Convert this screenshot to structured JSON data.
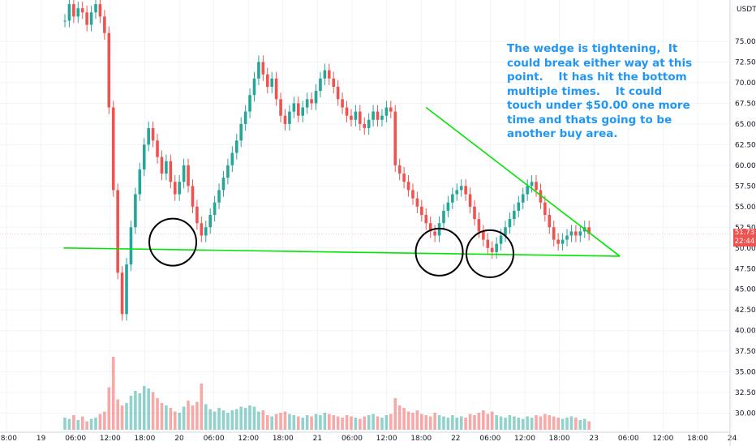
{
  "chart_data": {
    "type": "candlestick",
    "currency": "USDT",
    "ylim": [
      28.0,
      80.0
    ],
    "y_ticks": [
      "75.00",
      "72.50",
      "70.00",
      "67.50",
      "65.00",
      "62.50",
      "60.00",
      "57.50",
      "55.00",
      "52.50",
      "50.00",
      "47.50",
      "45.00",
      "42.50",
      "40.00",
      "37.50",
      "35.00",
      "32.50",
      "30.00"
    ],
    "x_ticks": [
      "18:00",
      "19",
      "06:00",
      "12:00",
      "18:00",
      "20",
      "06:00",
      "12:00",
      "18:00",
      "21",
      "06:00",
      "12:00",
      "18:00",
      "22",
      "06:00",
      "12:00",
      "18:00",
      "23",
      "06:00",
      "12:00",
      "18:00",
      "24"
    ],
    "last_price": "51.73",
    "countdown": "22:44",
    "annotation": "The wedge is tightening,  It could break either way at this point.    It has hit the bottom multiple times.    It could touch under $50.00 one more time and thats going to be another buy area.",
    "price_series": [
      [
        77.5,
        77.5
      ],
      [
        77.5,
        79.5
      ],
      [
        79.5,
        78.0
      ],
      [
        78.0,
        79.0
      ],
      [
        79.0,
        78.5
      ],
      [
        78.5,
        77.0
      ],
      [
        77.0,
        78.5
      ],
      [
        78.5,
        79.5
      ],
      [
        79.5,
        78.0
      ],
      [
        78.0,
        76.0
      ],
      [
        76.0,
        67.0
      ],
      [
        67.0,
        57.0
      ],
      [
        57.0,
        47.0
      ],
      [
        47.0,
        42.0
      ],
      [
        42.0,
        48.0
      ],
      [
        48.0,
        52.5
      ],
      [
        52.5,
        56.5
      ],
      [
        56.5,
        59.5
      ],
      [
        59.5,
        62.5
      ],
      [
        62.5,
        64.5
      ],
      [
        64.5,
        63.0
      ],
      [
        63.0,
        61.0
      ],
      [
        61.0,
        59.0
      ],
      [
        59.0,
        60.5
      ],
      [
        60.5,
        58.0
      ],
      [
        58.0,
        56.5
      ],
      [
        56.5,
        58.0
      ],
      [
        58.0,
        60.0
      ],
      [
        60.0,
        57.5
      ],
      [
        57.5,
        55.0
      ],
      [
        55.0,
        53.0
      ],
      [
        53.0,
        51.5
      ],
      [
        51.5,
        52.5
      ],
      [
        52.5,
        54.0
      ],
      [
        54.0,
        55.5
      ],
      [
        55.5,
        57.0
      ],
      [
        57.0,
        58.5
      ],
      [
        58.5,
        60.0
      ],
      [
        60.0,
        61.5
      ],
      [
        61.5,
        63.0
      ],
      [
        63.0,
        65.0
      ],
      [
        65.0,
        66.5
      ],
      [
        66.5,
        68.5
      ],
      [
        68.5,
        70.5
      ],
      [
        70.5,
        72.5
      ],
      [
        72.5,
        71.0
      ],
      [
        71.0,
        69.5
      ],
      [
        69.5,
        70.5
      ],
      [
        70.5,
        68.0
      ],
      [
        68.0,
        66.0
      ],
      [
        66.0,
        65.0
      ],
      [
        65.0,
        66.5
      ],
      [
        66.5,
        67.5
      ],
      [
        67.5,
        66.0
      ],
      [
        66.0,
        67.0
      ],
      [
        67.0,
        68.0
      ],
      [
        68.0,
        67.5
      ],
      [
        67.5,
        69.0
      ],
      [
        69.0,
        70.5
      ],
      [
        70.5,
        71.5
      ],
      [
        71.5,
        70.5
      ],
      [
        70.5,
        69.5
      ],
      [
        69.5,
        68.0
      ],
      [
        68.0,
        67.0
      ],
      [
        67.0,
        66.0
      ],
      [
        66.0,
        65.5
      ],
      [
        65.5,
        66.5
      ],
      [
        66.5,
        65.0
      ],
      [
        65.0,
        64.5
      ],
      [
        64.5,
        65.5
      ],
      [
        65.5,
        66.5
      ],
      [
        66.5,
        65.5
      ],
      [
        65.5,
        66.0
      ],
      [
        66.0,
        67.0
      ],
      [
        67.0,
        66.5
      ],
      [
        66.5,
        60.0
      ],
      [
        60.0,
        59.0
      ],
      [
        59.0,
        58.0
      ],
      [
        58.0,
        57.0
      ],
      [
        57.0,
        56.0
      ],
      [
        56.0,
        55.0
      ],
      [
        55.0,
        54.0
      ],
      [
        54.0,
        53.0
      ],
      [
        53.0,
        52.0
      ],
      [
        52.0,
        51.5
      ],
      [
        51.5,
        53.0
      ],
      [
        53.0,
        54.5
      ],
      [
        54.5,
        55.5
      ],
      [
        55.5,
        56.5
      ],
      [
        56.5,
        57.0
      ],
      [
        57.0,
        57.5
      ],
      [
        57.5,
        56.5
      ],
      [
        56.5,
        55.0
      ],
      [
        55.0,
        53.5
      ],
      [
        53.5,
        52.0
      ],
      [
        52.0,
        51.0
      ],
      [
        51.0,
        50.0
      ],
      [
        50.0,
        49.5
      ],
      [
        49.5,
        50.5
      ],
      [
        50.5,
        51.5
      ],
      [
        51.5,
        52.5
      ],
      [
        52.5,
        53.5
      ],
      [
        53.5,
        54.5
      ],
      [
        54.5,
        55.5
      ],
      [
        55.5,
        56.5
      ],
      [
        56.5,
        57.5
      ],
      [
        57.5,
        58.0
      ],
      [
        58.0,
        57.0
      ],
      [
        57.0,
        55.5
      ],
      [
        55.5,
        54.0
      ],
      [
        54.0,
        52.5
      ],
      [
        52.5,
        51.0
      ],
      [
        51.0,
        50.5
      ],
      [
        50.5,
        51.0
      ],
      [
        51.0,
        51.5
      ],
      [
        51.5,
        52.0
      ],
      [
        52.0,
        51.5
      ],
      [
        51.5,
        52.0
      ],
      [
        52.0,
        52.5
      ],
      [
        52.5,
        51.7
      ]
    ],
    "volume_series": [
      1.0,
      0.9,
      1.2,
      0.8,
      1.1,
      0.7,
      0.9,
      1.0,
      1.3,
      1.5,
      3.5,
      6.0,
      2.5,
      2.0,
      2.2,
      2.8,
      3.2,
      3.0,
      3.6,
      3.4,
      3.1,
      2.6,
      2.2,
      2.0,
      1.8,
      1.5,
      1.4,
      1.9,
      2.4,
      2.0,
      2.3,
      3.8,
      2.1,
      1.7,
      1.5,
      1.8,
      1.6,
      1.4,
      1.6,
      1.7,
      1.9,
      1.8,
      2.0,
      1.9,
      1.5,
      1.6,
      1.2,
      1.1,
      1.3,
      1.4,
      1.5,
      1.3,
      1.2,
      1.1,
      1.0,
      1.2,
      1.1,
      1.3,
      1.2,
      1.4,
      1.3,
      1.2,
      1.1,
      1.0,
      1.2,
      1.1,
      1.0,
      0.9,
      1.1,
      1.2,
      1.3,
      1.1,
      1.0,
      1.2,
      1.3,
      2.6,
      2.0,
      1.8,
      1.5,
      1.4,
      1.6,
      1.3,
      1.2,
      1.1,
      1.4,
      1.2,
      1.1,
      1.0,
      1.2,
      1.0,
      1.1,
      1.0,
      1.3,
      1.2,
      1.4,
      1.6,
      1.3,
      1.5,
      1.2,
      1.1,
      1.0,
      1.2,
      1.1,
      1.0,
      0.9,
      1.1,
      1.0,
      1.2,
      1.1,
      1.3,
      1.2,
      1.1,
      1.0,
      0.9,
      1.0,
      1.1,
      1.0,
      0.8,
      0.9,
      0.7
    ],
    "trendlines": [
      {
        "color": "#00e600",
        "from": [
          -0.3,
          50.0
        ],
        "to": [
          126.0,
          49.0
        ]
      },
      {
        "color": "#00e600",
        "from": [
          82.0,
          67.0
        ],
        "to": [
          126.0,
          49.0
        ]
      }
    ],
    "circles": [
      {
        "center_index": 24.5,
        "center_price": 50.7
      },
      {
        "center_index": 85.0,
        "center_price": 49.5
      },
      {
        "center_index": 96.5,
        "center_price": 49.3
      }
    ],
    "colors": {
      "up": "#26a69a",
      "down": "#ef5350",
      "trendline": "#00e600",
      "annotation": "#2196f3",
      "circle": "#000000"
    }
  }
}
